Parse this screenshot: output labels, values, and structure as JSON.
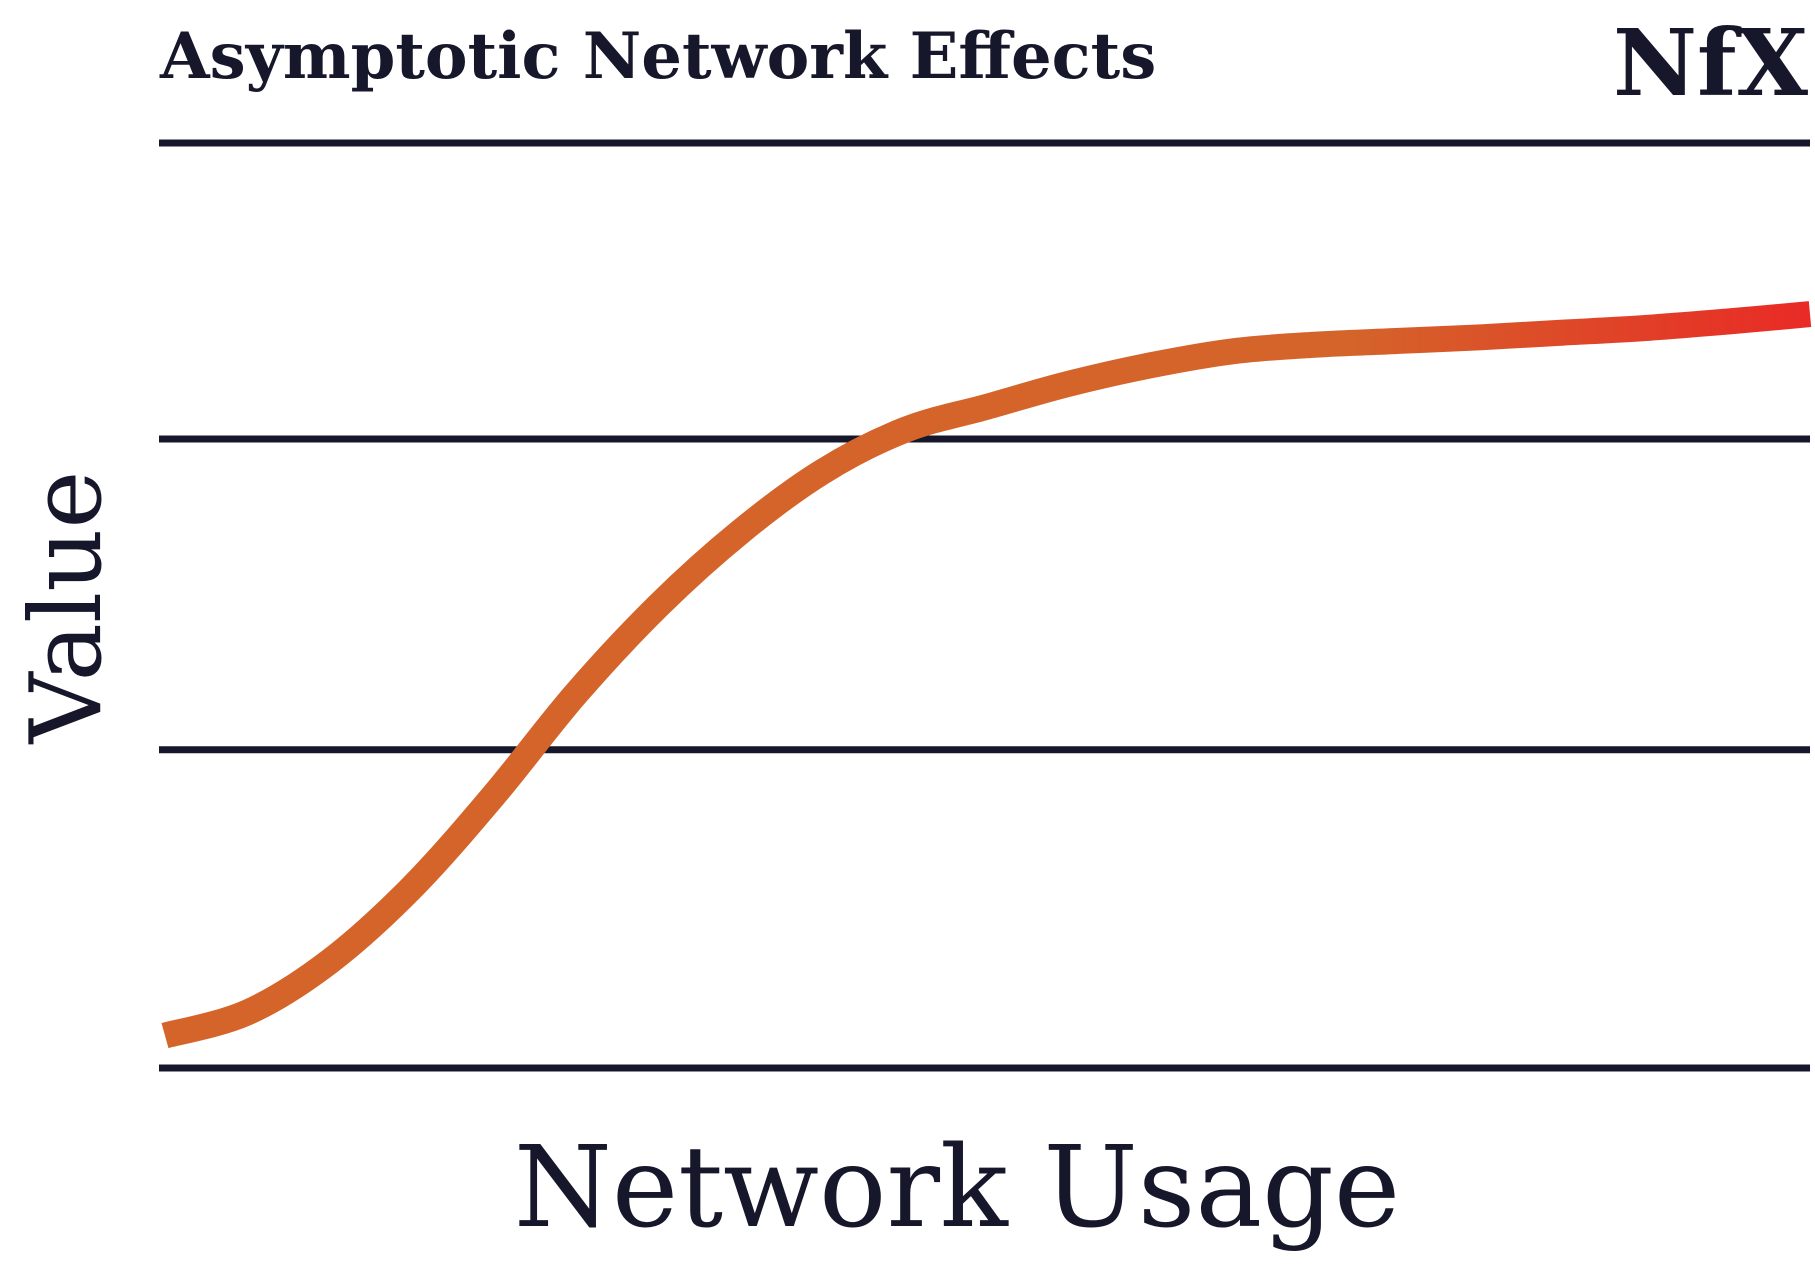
{
  "colors": {
    "text": "#16172a",
    "gridline": "#16172a",
    "curve_start": "#d4642a",
    "curve_end": "#e92a26"
  },
  "logo": {
    "text": "NfX"
  },
  "chart_data": {
    "type": "line",
    "title": "Asymptotic Network Effects",
    "xlabel": "Network Usage",
    "ylabel": "Value",
    "xlim": [
      0,
      1
    ],
    "ylim": [
      0,
      1
    ],
    "grid": true,
    "y_gridlines": [
      0,
      0.344,
      0.68,
      1
    ],
    "series": [
      {
        "x": [
          0,
          0.05,
          0.1,
          0.15,
          0.2,
          0.25,
          0.3,
          0.35,
          0.4,
          0.45,
          0.5,
          0.55,
          0.6,
          0.65,
          0.7,
          0.75,
          0.8,
          0.85,
          0.9,
          0.95,
          1.0
        ],
        "values": [
          0.035,
          0.06,
          0.115,
          0.195,
          0.295,
          0.405,
          0.5,
          0.58,
          0.645,
          0.69,
          0.715,
          0.74,
          0.76,
          0.775,
          0.782,
          0.786,
          0.79,
          0.795,
          0.8,
          0.807,
          0.815
        ]
      }
    ]
  }
}
